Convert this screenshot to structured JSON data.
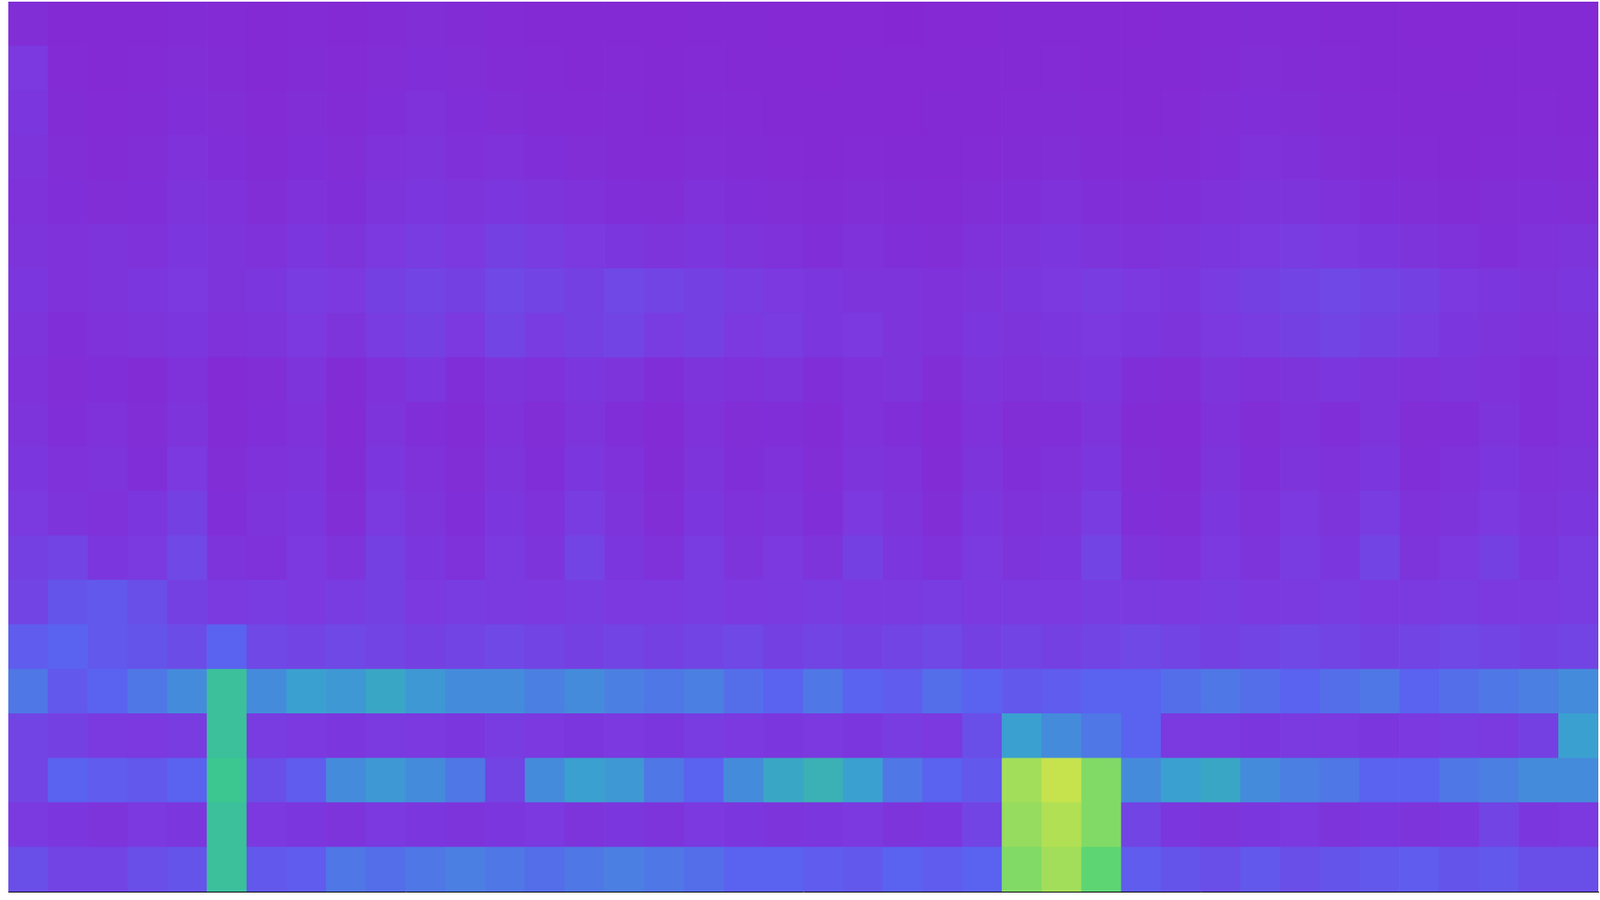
{
  "chart_data": {
    "type": "heatmap",
    "xlim": [
      0,
      40
    ],
    "ylim": [
      0,
      20
    ],
    "xticks": [],
    "yticks": [],
    "tick_labels": false,
    "grid": false,
    "cell_range": [
      0,
      1
    ],
    "cells": [
      [
        0.35,
        0.3,
        0.3,
        0.35,
        0.38,
        0.7,
        0.4,
        0.42,
        0.5,
        0.48,
        0.5,
        0.52,
        0.5,
        0.48,
        0.5,
        0.52,
        0.5,
        0.48,
        0.45,
        0.45,
        0.42,
        0.4,
        0.45,
        0.42,
        0.45,
        0.85,
        0.9,
        0.8,
        0.42,
        0.38,
        0.35,
        0.4,
        0.35,
        0.38,
        0.4,
        0.42,
        0.38,
        0.4,
        0.35,
        0.35
      ],
      [
        0.25,
        0.22,
        0.2,
        0.24,
        0.22,
        0.7,
        0.24,
        0.22,
        0.2,
        0.24,
        0.22,
        0.2,
        0.22,
        0.24,
        0.2,
        0.22,
        0.2,
        0.24,
        0.22,
        0.2,
        0.22,
        0.24,
        0.2,
        0.22,
        0.3,
        0.88,
        0.92,
        0.85,
        0.3,
        0.22,
        0.2,
        0.22,
        0.24,
        0.2,
        0.22,
        0.2,
        0.22,
        0.3,
        0.22,
        0.24
      ],
      [
        0.3,
        0.45,
        0.42,
        0.4,
        0.45,
        0.72,
        0.35,
        0.42,
        0.55,
        0.58,
        0.55,
        0.5,
        0.3,
        0.55,
        0.6,
        0.58,
        0.5,
        0.45,
        0.55,
        0.62,
        0.65,
        0.6,
        0.5,
        0.45,
        0.4,
        0.9,
        0.95,
        0.85,
        0.55,
        0.6,
        0.62,
        0.55,
        0.52,
        0.5,
        0.45,
        0.45,
        0.5,
        0.52,
        0.55,
        0.55
      ],
      [
        0.3,
        0.28,
        0.25,
        0.24,
        0.26,
        0.7,
        0.26,
        0.24,
        0.22,
        0.25,
        0.24,
        0.22,
        0.26,
        0.24,
        0.22,
        0.24,
        0.22,
        0.26,
        0.24,
        0.22,
        0.24,
        0.22,
        0.26,
        0.24,
        0.35,
        0.6,
        0.55,
        0.5,
        0.45,
        0.25,
        0.24,
        0.22,
        0.25,
        0.24,
        0.22,
        0.24,
        0.26,
        0.25,
        0.28,
        0.6
      ],
      [
        0.5,
        0.4,
        0.45,
        0.5,
        0.55,
        0.7,
        0.55,
        0.6,
        0.58,
        0.62,
        0.58,
        0.55,
        0.55,
        0.52,
        0.55,
        0.52,
        0.5,
        0.52,
        0.48,
        0.45,
        0.5,
        0.45,
        0.42,
        0.48,
        0.45,
        0.4,
        0.42,
        0.45,
        0.45,
        0.48,
        0.5,
        0.48,
        0.45,
        0.48,
        0.5,
        0.45,
        0.48,
        0.5,
        0.52,
        0.55
      ],
      [
        0.42,
        0.45,
        0.4,
        0.38,
        0.34,
        0.45,
        0.32,
        0.3,
        0.32,
        0.3,
        0.28,
        0.3,
        0.32,
        0.3,
        0.28,
        0.3,
        0.28,
        0.3,
        0.32,
        0.28,
        0.3,
        0.28,
        0.3,
        0.32,
        0.28,
        0.3,
        0.28,
        0.3,
        0.32,
        0.3,
        0.28,
        0.3,
        0.32,
        0.3,
        0.28,
        0.3,
        0.32,
        0.3,
        0.28,
        0.3
      ],
      [
        0.3,
        0.38,
        0.4,
        0.35,
        0.28,
        0.25,
        0.26,
        0.24,
        0.26,
        0.28,
        0.24,
        0.26,
        0.25,
        0.24,
        0.26,
        0.24,
        0.25,
        0.26,
        0.24,
        0.25,
        0.26,
        0.24,
        0.25,
        0.26,
        0.24,
        0.25,
        0.24,
        0.26,
        0.25,
        0.24,
        0.26,
        0.24,
        0.25,
        0.26,
        0.24,
        0.25,
        0.26,
        0.24,
        0.25,
        0.26
      ],
      [
        0.28,
        0.3,
        0.22,
        0.25,
        0.32,
        0.2,
        0.18,
        0.24,
        0.2,
        0.28,
        0.22,
        0.18,
        0.25,
        0.2,
        0.3,
        0.22,
        0.18,
        0.26,
        0.2,
        0.24,
        0.2,
        0.28,
        0.22,
        0.18,
        0.25,
        0.2,
        0.22,
        0.3,
        0.2,
        0.18,
        0.24,
        0.2,
        0.26,
        0.22,
        0.3,
        0.2,
        0.24,
        0.28,
        0.22,
        0.26
      ],
      [
        0.25,
        0.2,
        0.18,
        0.22,
        0.28,
        0.16,
        0.2,
        0.22,
        0.15,
        0.25,
        0.2,
        0.16,
        0.22,
        0.18,
        0.26,
        0.2,
        0.15,
        0.22,
        0.18,
        0.2,
        0.16,
        0.24,
        0.2,
        0.15,
        0.22,
        0.18,
        0.2,
        0.26,
        0.16,
        0.15,
        0.22,
        0.18,
        0.24,
        0.2,
        0.26,
        0.18,
        0.2,
        0.24,
        0.2,
        0.22
      ],
      [
        0.22,
        0.18,
        0.2,
        0.16,
        0.24,
        0.15,
        0.18,
        0.2,
        0.14,
        0.22,
        0.18,
        0.15,
        0.2,
        0.16,
        0.22,
        0.18,
        0.14,
        0.2,
        0.16,
        0.18,
        0.15,
        0.2,
        0.18,
        0.14,
        0.2,
        0.16,
        0.18,
        0.22,
        0.15,
        0.14,
        0.2,
        0.16,
        0.2,
        0.18,
        0.22,
        0.16,
        0.18,
        0.22,
        0.18,
        0.2
      ],
      [
        0.2,
        0.16,
        0.18,
        0.15,
        0.2,
        0.14,
        0.16,
        0.18,
        0.13,
        0.2,
        0.16,
        0.14,
        0.18,
        0.15,
        0.2,
        0.16,
        0.13,
        0.18,
        0.15,
        0.16,
        0.14,
        0.18,
        0.16,
        0.13,
        0.18,
        0.15,
        0.16,
        0.2,
        0.14,
        0.13,
        0.18,
        0.15,
        0.18,
        0.16,
        0.2,
        0.15,
        0.16,
        0.2,
        0.16,
        0.18
      ],
      [
        0.18,
        0.15,
        0.16,
        0.14,
        0.18,
        0.13,
        0.15,
        0.2,
        0.14,
        0.18,
        0.22,
        0.16,
        0.2,
        0.18,
        0.22,
        0.2,
        0.16,
        0.2,
        0.18,
        0.2,
        0.16,
        0.18,
        0.2,
        0.15,
        0.2,
        0.18,
        0.2,
        0.22,
        0.16,
        0.15,
        0.2,
        0.18,
        0.2,
        0.22,
        0.2,
        0.18,
        0.2,
        0.18,
        0.16,
        0.18
      ],
      [
        0.2,
        0.16,
        0.18,
        0.2,
        0.22,
        0.18,
        0.2,
        0.24,
        0.2,
        0.26,
        0.28,
        0.24,
        0.3,
        0.26,
        0.28,
        0.3,
        0.26,
        0.28,
        0.24,
        0.26,
        0.22,
        0.24,
        0.2,
        0.18,
        0.22,
        0.2,
        0.22,
        0.24,
        0.22,
        0.2,
        0.24,
        0.26,
        0.28,
        0.3,
        0.28,
        0.26,
        0.22,
        0.2,
        0.18,
        0.2
      ],
      [
        0.22,
        0.18,
        0.2,
        0.22,
        0.24,
        0.2,
        0.22,
        0.26,
        0.24,
        0.28,
        0.3,
        0.28,
        0.32,
        0.3,
        0.28,
        0.32,
        0.3,
        0.28,
        0.26,
        0.24,
        0.22,
        0.2,
        0.2,
        0.18,
        0.2,
        0.22,
        0.24,
        0.26,
        0.24,
        0.22,
        0.26,
        0.28,
        0.3,
        0.32,
        0.3,
        0.28,
        0.24,
        0.22,
        0.2,
        0.22
      ],
      [
        0.2,
        0.18,
        0.2,
        0.18,
        0.22,
        0.2,
        0.18,
        0.22,
        0.2,
        0.24,
        0.26,
        0.24,
        0.28,
        0.26,
        0.24,
        0.22,
        0.2,
        0.22,
        0.2,
        0.18,
        0.16,
        0.18,
        0.16,
        0.15,
        0.18,
        0.2,
        0.22,
        0.2,
        0.18,
        0.2,
        0.22,
        0.24,
        0.26,
        0.24,
        0.22,
        0.2,
        0.18,
        0.16,
        0.18,
        0.2
      ],
      [
        0.18,
        0.16,
        0.15,
        0.16,
        0.2,
        0.18,
        0.15,
        0.18,
        0.16,
        0.2,
        0.22,
        0.2,
        0.22,
        0.2,
        0.18,
        0.16,
        0.15,
        0.18,
        0.16,
        0.15,
        0.14,
        0.15,
        0.14,
        0.13,
        0.15,
        0.16,
        0.18,
        0.16,
        0.15,
        0.16,
        0.18,
        0.2,
        0.2,
        0.18,
        0.16,
        0.15,
        0.14,
        0.15,
        0.16,
        0.15
      ],
      [
        0.2,
        0.15,
        0.14,
        0.15,
        0.18,
        0.16,
        0.14,
        0.16,
        0.15,
        0.18,
        0.2,
        0.17,
        0.18,
        0.16,
        0.15,
        0.14,
        0.13,
        0.15,
        0.14,
        0.13,
        0.12,
        0.13,
        0.12,
        0.12,
        0.13,
        0.14,
        0.15,
        0.14,
        0.13,
        0.14,
        0.16,
        0.18,
        0.17,
        0.15,
        0.14,
        0.13,
        0.12,
        0.13,
        0.14,
        0.13
      ],
      [
        0.22,
        0.14,
        0.13,
        0.14,
        0.16,
        0.15,
        0.13,
        0.15,
        0.14,
        0.16,
        0.18,
        0.16,
        0.15,
        0.14,
        0.13,
        0.14,
        0.12,
        0.14,
        0.13,
        0.12,
        0.12,
        0.12,
        0.11,
        0.12,
        0.12,
        0.13,
        0.14,
        0.13,
        0.12,
        0.13,
        0.15,
        0.16,
        0.15,
        0.14,
        0.13,
        0.12,
        0.12,
        0.12,
        0.13,
        0.12
      ],
      [
        0.24,
        0.13,
        0.12,
        0.13,
        0.15,
        0.14,
        0.12,
        0.14,
        0.13,
        0.15,
        0.16,
        0.15,
        0.14,
        0.13,
        0.12,
        0.13,
        0.12,
        0.13,
        0.12,
        0.12,
        0.11,
        0.12,
        0.11,
        0.11,
        0.12,
        0.12,
        0.13,
        0.12,
        0.12,
        0.12,
        0.14,
        0.15,
        0.14,
        0.13,
        0.12,
        0.12,
        0.11,
        0.12,
        0.12,
        0.12
      ],
      [
        0.15,
        0.12,
        0.12,
        0.12,
        0.14,
        0.13,
        0.12,
        0.13,
        0.12,
        0.14,
        0.15,
        0.14,
        0.13,
        0.12,
        0.12,
        0.12,
        0.11,
        0.12,
        0.12,
        0.11,
        0.11,
        0.11,
        0.1,
        0.11,
        0.11,
        0.12,
        0.12,
        0.12,
        0.11,
        0.12,
        0.13,
        0.14,
        0.13,
        0.12,
        0.12,
        0.11,
        0.11,
        0.11,
        0.12,
        0.12
      ]
    ]
  }
}
